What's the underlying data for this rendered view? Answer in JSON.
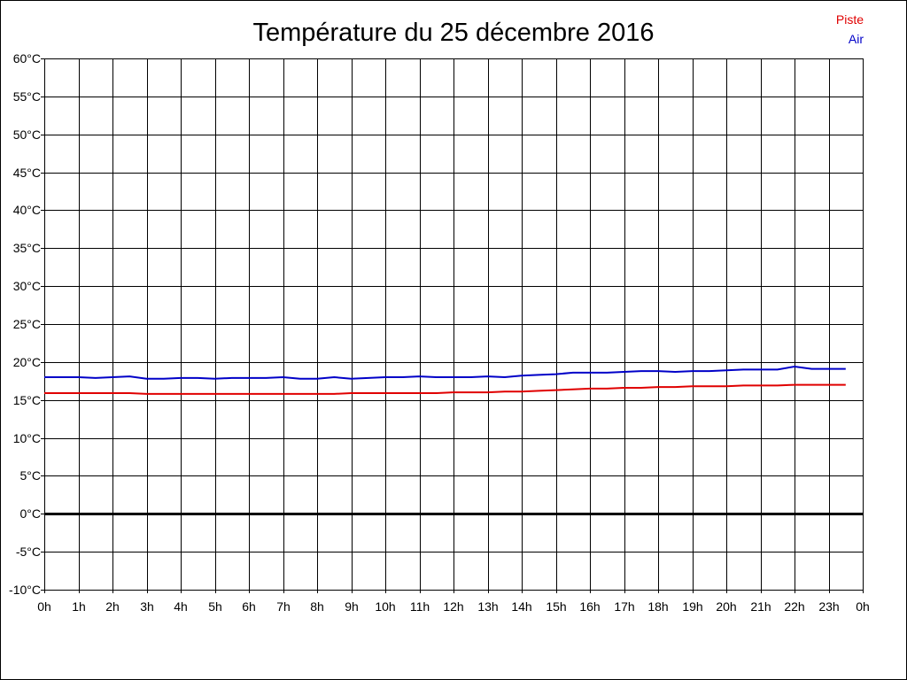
{
  "colors": {
    "piste": "#e00000",
    "air": "#0000c8",
    "grid": "#000000",
    "zero": "#000000"
  },
  "chart_data": {
    "type": "line",
    "title": "Température du 25 décembre 2016",
    "xlabel": "",
    "ylabel": "",
    "ylim": [
      -10,
      60
    ],
    "xlim": [
      0,
      24
    ],
    "y_ticks": [
      -10,
      -5,
      0,
      5,
      10,
      15,
      20,
      25,
      30,
      35,
      40,
      45,
      50,
      55,
      60
    ],
    "y_tick_labels": [
      "-10°C",
      "-5°C",
      "0°C",
      "5°C",
      "10°C",
      "15°C",
      "20°C",
      "25°C",
      "30°C",
      "35°C",
      "40°C",
      "45°C",
      "50°C",
      "55°C",
      "60°C"
    ],
    "x_tick_labels": [
      "0h",
      "1h",
      "2h",
      "3h",
      "4h",
      "5h",
      "6h",
      "7h",
      "8h",
      "9h",
      "10h",
      "11h",
      "12h",
      "13h",
      "14h",
      "15h",
      "16h",
      "17h",
      "18h",
      "19h",
      "20h",
      "21h",
      "22h",
      "23h",
      "0h"
    ],
    "grid": true,
    "legend": "top-right",
    "series": [
      {
        "name": "Piste",
        "color": "#e00000",
        "x": [
          0,
          0.5,
          1,
          1.5,
          2,
          2.5,
          3,
          3.5,
          4,
          4.5,
          5,
          5.5,
          6,
          6.5,
          7,
          7.5,
          8,
          8.5,
          9,
          9.5,
          10,
          10.5,
          11,
          11.5,
          12,
          12.5,
          13,
          13.5,
          14,
          14.5,
          15,
          15.5,
          16,
          16.5,
          17,
          17.5,
          18,
          18.5,
          19,
          19.5,
          20,
          20.5,
          21,
          21.5,
          22,
          22.5,
          23,
          23.5
        ],
        "y": [
          15.9,
          15.9,
          15.9,
          15.9,
          15.9,
          15.9,
          15.8,
          15.8,
          15.8,
          15.8,
          15.8,
          15.8,
          15.8,
          15.8,
          15.8,
          15.8,
          15.8,
          15.8,
          15.9,
          15.9,
          15.9,
          15.9,
          15.9,
          15.9,
          16.0,
          16.0,
          16.0,
          16.1,
          16.1,
          16.2,
          16.3,
          16.4,
          16.5,
          16.5,
          16.6,
          16.6,
          16.7,
          16.7,
          16.8,
          16.8,
          16.8,
          16.9,
          16.9,
          16.9,
          17.0,
          17.0,
          17.0,
          17.0
        ]
      },
      {
        "name": "Air",
        "color": "#0000c8",
        "x": [
          0,
          0.5,
          1,
          1.5,
          2,
          2.5,
          3,
          3.5,
          4,
          4.5,
          5,
          5.5,
          6,
          6.5,
          7,
          7.5,
          8,
          8.5,
          9,
          9.5,
          10,
          10.5,
          11,
          11.5,
          12,
          12.5,
          13,
          13.5,
          14,
          14.5,
          15,
          15.5,
          16,
          16.5,
          17,
          17.5,
          18,
          18.5,
          19,
          19.5,
          20,
          20.5,
          21,
          21.5,
          22,
          22.5,
          23,
          23.5
        ],
        "y": [
          18.0,
          18.0,
          18.0,
          17.9,
          18.0,
          18.1,
          17.8,
          17.8,
          17.9,
          17.9,
          17.8,
          17.9,
          17.9,
          17.9,
          18.0,
          17.8,
          17.8,
          18.0,
          17.8,
          17.9,
          18.0,
          18.0,
          18.1,
          18.0,
          18.0,
          18.0,
          18.1,
          18.0,
          18.2,
          18.3,
          18.4,
          18.6,
          18.6,
          18.6,
          18.7,
          18.8,
          18.8,
          18.7,
          18.8,
          18.8,
          18.9,
          19.0,
          19.0,
          19.0,
          19.4,
          19.1,
          19.1,
          19.1
        ]
      }
    ]
  }
}
